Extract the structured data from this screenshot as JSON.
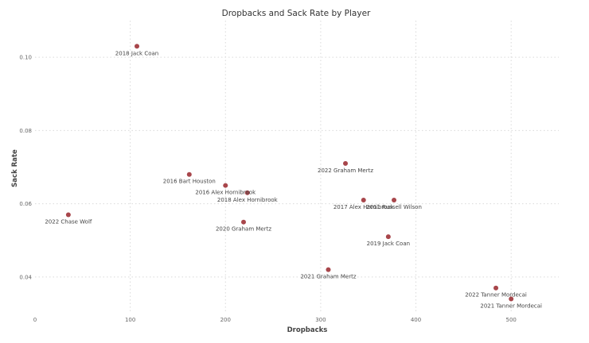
{
  "chart_data": {
    "type": "scatter",
    "title": "Dropbacks and Sack Rate by Player",
    "xlabel": "Dropbacks",
    "ylabel": "Sack Rate",
    "xlim": [
      0,
      550
    ],
    "ylim": [
      0.03,
      0.11
    ],
    "xticks": [
      0,
      100,
      200,
      300,
      400,
      500
    ],
    "xtick_labels": [
      "0",
      "100",
      "200",
      "300",
      "400",
      "500"
    ],
    "yticks": [
      0.04,
      0.06,
      0.08,
      0.1
    ],
    "ytick_labels": [
      "0.04",
      "0.06",
      "0.08",
      "0.10"
    ],
    "grid": true,
    "marker_color": "#a8464b",
    "points": [
      {
        "label": "2018 Jack Coan",
        "x": 107,
        "y": 0.103
      },
      {
        "label": "2016 Bart Houston",
        "x": 162,
        "y": 0.068
      },
      {
        "label": "2016 Alex Hornibrook",
        "x": 200,
        "y": 0.065
      },
      {
        "label": "2018 Alex Hornibrook",
        "x": 223,
        "y": 0.063
      },
      {
        "label": "2020 Graham Mertz",
        "x": 219,
        "y": 0.055
      },
      {
        "label": "2022 Chase Wolf",
        "x": 35,
        "y": 0.057
      },
      {
        "label": "2022 Graham Mertz",
        "x": 326,
        "y": 0.071
      },
      {
        "label": "2017 Alex Hornibrook",
        "x": 345,
        "y": 0.061
      },
      {
        "label": "2011 Russell Wilson",
        "x": 377,
        "y": 0.061
      },
      {
        "label": "2019 Jack Coan",
        "x": 371,
        "y": 0.051
      },
      {
        "label": "2021 Graham Mertz",
        "x": 308,
        "y": 0.042
      },
      {
        "label": "2022 Tanner Mordecai",
        "x": 484,
        "y": 0.037
      },
      {
        "label": "2021 Tanner Mordecai",
        "x": 500,
        "y": 0.034
      }
    ]
  }
}
